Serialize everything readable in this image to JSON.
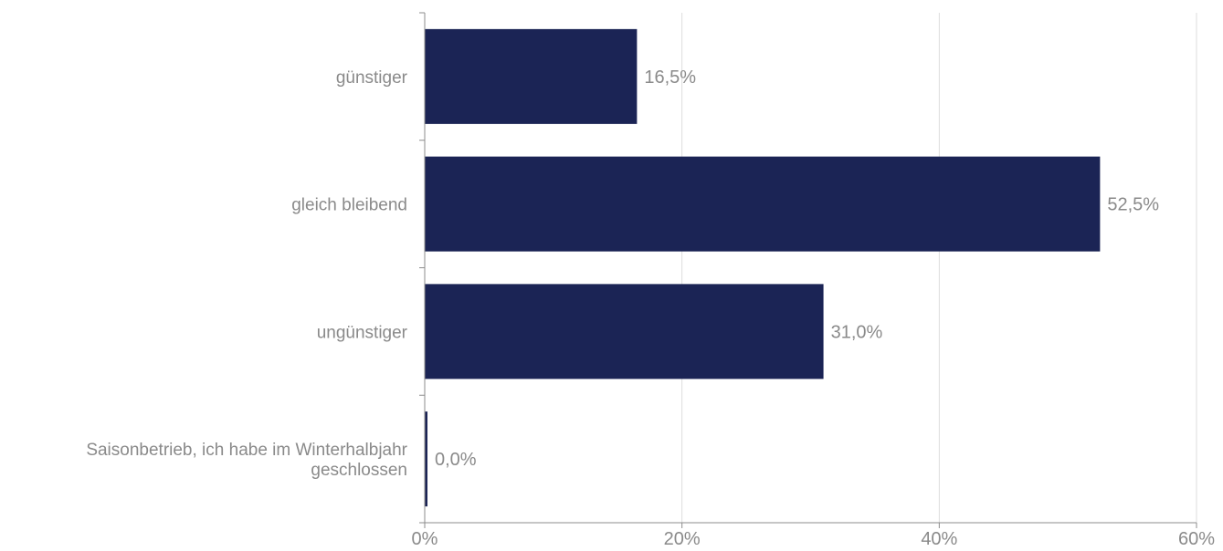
{
  "chart_data": {
    "type": "bar",
    "orientation": "horizontal",
    "categories": [
      [
        "günstiger"
      ],
      [
        "gleich bleibend"
      ],
      [
        "ungünstiger"
      ],
      [
        "Saisonbetrieb, ich habe im Winterhalbjahr",
        "geschlossen"
      ]
    ],
    "values": [
      16.5,
      52.5,
      31.0,
      0.0
    ],
    "value_labels": [
      "16,5%",
      "52,5%",
      "31,0%",
      "0,0%"
    ],
    "xlim": [
      0,
      60
    ],
    "x_ticks": [
      0,
      20,
      40,
      60
    ],
    "x_tick_labels": [
      "0%",
      "20%",
      "40%",
      "60%"
    ],
    "grid": "vertical",
    "legend": "none",
    "bar_color": "#1b2455",
    "axis_color": "#8c8c8c",
    "grid_color": "#dddddd",
    "label_color": "#8a8a8a",
    "title": "",
    "xlabel": "",
    "ylabel": ""
  }
}
